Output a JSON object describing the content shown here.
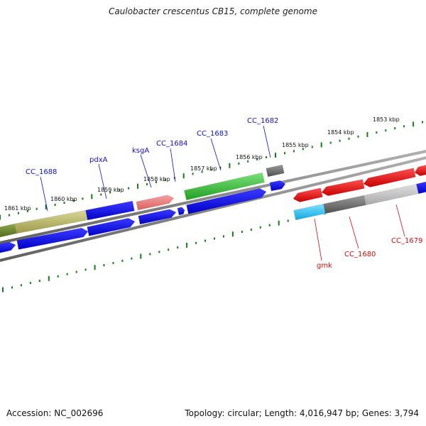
{
  "title": "Caulobacter crescentus CB15, complete genome",
  "footer": {
    "accession": "Accession: NC_002696",
    "summary": "Topology: circular; Length: 4,016,947 bp; Genes: 3,794"
  },
  "scale_labels": [
    "1861 kbp",
    "1860 kbp",
    "1859 kbp",
    "1858 kbp",
    "1857 kbp",
    "1856 kbp",
    "1855 kbp",
    "1854 kbp",
    "1853 kbp"
  ],
  "gene_labels": {
    "top": [
      "CC_1688",
      "pdxA",
      "ksgA",
      "CC_1684",
      "CC_1683",
      "CC_1682"
    ],
    "bottom": [
      "gmk",
      "CC_1680",
      "CC_1679"
    ]
  },
  "colors": {
    "label_top": "#1010c0",
    "label_bottom": "#cc1010",
    "tick": "#1a7a1a",
    "backbone": "#7a7a7a"
  }
}
